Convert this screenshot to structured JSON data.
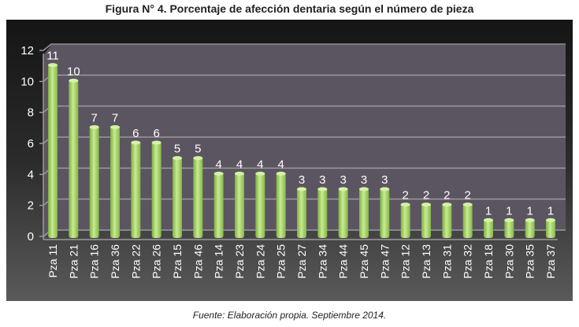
{
  "chart_data": {
    "type": "bar",
    "title": "Figura N° 4. Porcentaje de afección dentaria según el número de pieza",
    "categories": [
      "Pza 11",
      "Pza 21",
      "Pza 16",
      "Pza 36",
      "Pza 22",
      "Pza 26",
      "Pza 15",
      "Pza 46",
      "Pza 14",
      "Pza 23",
      "Pza 24",
      "Pza 25",
      "Pza 27",
      "Pza 34",
      "Pza 44",
      "Pza 45",
      "Pza 47",
      "Pza 12",
      "Pza 13",
      "Pza 31",
      "Pza 32",
      "Pza 18",
      "Pza 30",
      "Pza 35",
      "Pza 37"
    ],
    "values": [
      11,
      10,
      7,
      7,
      6,
      6,
      5,
      5,
      4,
      4,
      4,
      4,
      3,
      3,
      3,
      3,
      3,
      2,
      2,
      2,
      2,
      1,
      1,
      1,
      1
    ],
    "ylim": [
      0,
      12
    ],
    "yticks": [
      0,
      2,
      4,
      6,
      8,
      10,
      12
    ],
    "xlabel": "",
    "ylabel": "",
    "grid": true,
    "bar_color": "#a8d36a",
    "plot_bg": "#5b5561"
  },
  "footer": "Fuente: Elaboración propia. Septiembre 2014."
}
